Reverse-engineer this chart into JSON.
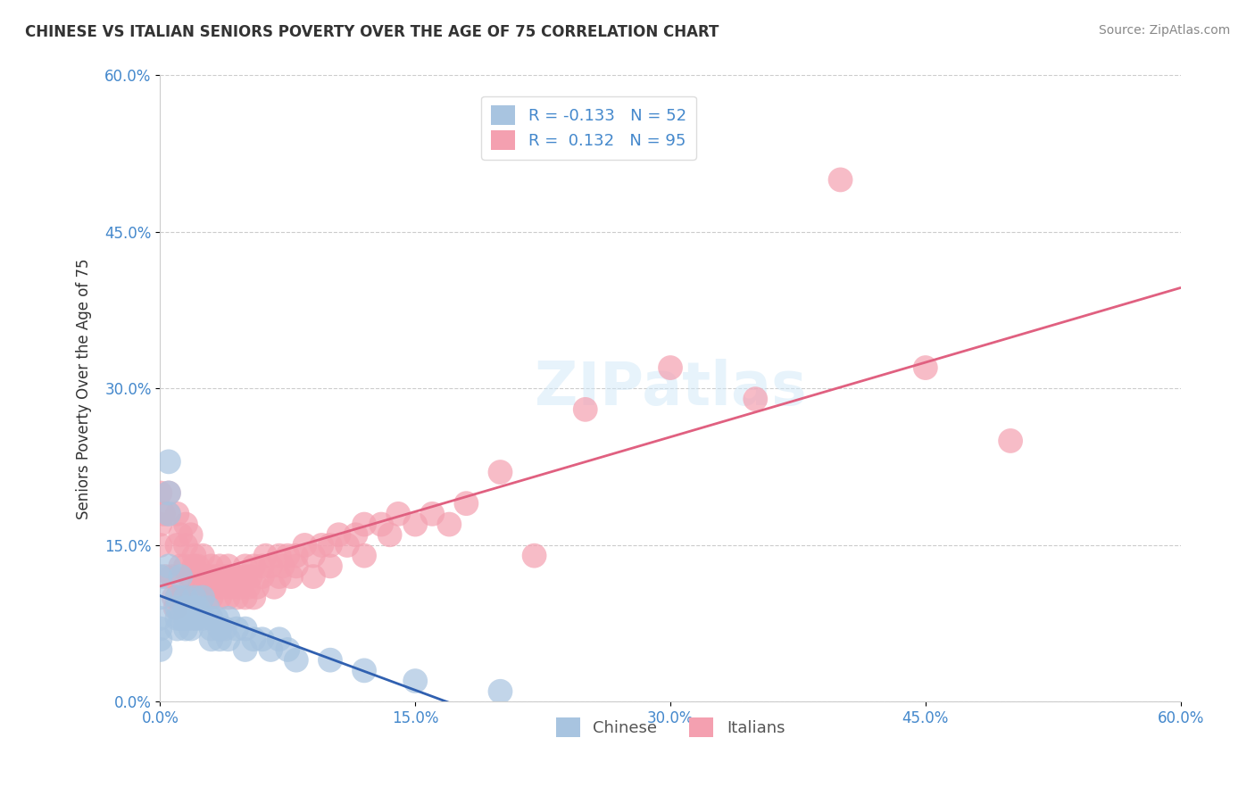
{
  "title": "CHINESE VS ITALIAN SENIORS POVERTY OVER THE AGE OF 75 CORRELATION CHART",
  "source": "Source: ZipAtlas.com",
  "xlabel_label": "0.0%",
  "ylabel": "Seniors Poverty Over the Age of 75",
  "xlim": [
    0.0,
    0.6
  ],
  "ylim": [
    0.0,
    0.6
  ],
  "yticks": [
    0.0,
    0.15,
    0.3,
    0.45,
    0.6
  ],
  "xticks": [
    0.0,
    0.15,
    0.3,
    0.45,
    0.6
  ],
  "chinese_R": -0.133,
  "chinese_N": 52,
  "italian_R": 0.132,
  "italian_N": 95,
  "chinese_color": "#a8c4e0",
  "italian_color": "#f4a0b0",
  "chinese_line_color": "#3060b0",
  "italian_line_color": "#e06080",
  "legend_label_chinese": "Chinese",
  "legend_label_italian": "Italians",
  "watermark": "ZIPatlas",
  "chinese_x": [
    0.0,
    0.0,
    0.0,
    0.0,
    0.0,
    0.0,
    0.005,
    0.005,
    0.005,
    0.005,
    0.01,
    0.01,
    0.01,
    0.01,
    0.012,
    0.012,
    0.015,
    0.015,
    0.015,
    0.015,
    0.017,
    0.018,
    0.02,
    0.02,
    0.02,
    0.022,
    0.022,
    0.025,
    0.025,
    0.028,
    0.03,
    0.03,
    0.03,
    0.033,
    0.035,
    0.035,
    0.038,
    0.04,
    0.04,
    0.045,
    0.05,
    0.05,
    0.055,
    0.06,
    0.065,
    0.07,
    0.075,
    0.08,
    0.1,
    0.12,
    0.15,
    0.2
  ],
  "chinese_y": [
    0.1,
    0.12,
    0.08,
    0.07,
    0.06,
    0.05,
    0.23,
    0.2,
    0.18,
    0.13,
    0.1,
    0.09,
    0.08,
    0.07,
    0.12,
    0.08,
    0.1,
    0.09,
    0.08,
    0.07,
    0.08,
    0.07,
    0.1,
    0.09,
    0.08,
    0.09,
    0.08,
    0.1,
    0.08,
    0.09,
    0.08,
    0.07,
    0.06,
    0.08,
    0.07,
    0.06,
    0.07,
    0.08,
    0.06,
    0.07,
    0.07,
    0.05,
    0.06,
    0.06,
    0.05,
    0.06,
    0.05,
    0.04,
    0.04,
    0.03,
    0.02,
    0.01
  ],
  "italian_x": [
    0.0,
    0.0,
    0.0,
    0.002,
    0.003,
    0.005,
    0.005,
    0.007,
    0.008,
    0.009,
    0.01,
    0.01,
    0.01,
    0.012,
    0.012,
    0.013,
    0.015,
    0.015,
    0.015,
    0.015,
    0.017,
    0.018,
    0.018,
    0.02,
    0.02,
    0.02,
    0.022,
    0.023,
    0.025,
    0.025,
    0.025,
    0.027,
    0.028,
    0.03,
    0.03,
    0.03,
    0.032,
    0.033,
    0.035,
    0.035,
    0.037,
    0.038,
    0.04,
    0.04,
    0.04,
    0.042,
    0.045,
    0.045,
    0.047,
    0.05,
    0.05,
    0.05,
    0.052,
    0.053,
    0.055,
    0.055,
    0.057,
    0.06,
    0.06,
    0.062,
    0.065,
    0.067,
    0.07,
    0.07,
    0.072,
    0.075,
    0.077,
    0.08,
    0.08,
    0.085,
    0.09,
    0.09,
    0.095,
    0.1,
    0.1,
    0.105,
    0.11,
    0.115,
    0.12,
    0.12,
    0.13,
    0.135,
    0.14,
    0.15,
    0.16,
    0.17,
    0.18,
    0.2,
    0.22,
    0.25,
    0.3,
    0.35,
    0.4,
    0.45,
    0.5
  ],
  "italian_y": [
    0.2,
    0.17,
    0.15,
    0.18,
    0.12,
    0.2,
    0.18,
    0.12,
    0.1,
    0.09,
    0.18,
    0.15,
    0.1,
    0.16,
    0.13,
    0.1,
    0.17,
    0.15,
    0.13,
    0.1,
    0.12,
    0.16,
    0.12,
    0.14,
    0.13,
    0.1,
    0.13,
    0.11,
    0.14,
    0.12,
    0.1,
    0.12,
    0.11,
    0.13,
    0.12,
    0.1,
    0.11,
    0.12,
    0.13,
    0.1,
    0.11,
    0.12,
    0.13,
    0.12,
    0.1,
    0.11,
    0.12,
    0.1,
    0.11,
    0.13,
    0.12,
    0.1,
    0.11,
    0.12,
    0.13,
    0.1,
    0.11,
    0.13,
    0.12,
    0.14,
    0.13,
    0.11,
    0.14,
    0.12,
    0.13,
    0.14,
    0.12,
    0.14,
    0.13,
    0.15,
    0.14,
    0.12,
    0.15,
    0.15,
    0.13,
    0.16,
    0.15,
    0.16,
    0.17,
    0.14,
    0.17,
    0.16,
    0.18,
    0.17,
    0.18,
    0.17,
    0.19,
    0.22,
    0.14,
    0.28,
    0.32,
    0.29,
    0.5,
    0.32,
    0.25
  ]
}
